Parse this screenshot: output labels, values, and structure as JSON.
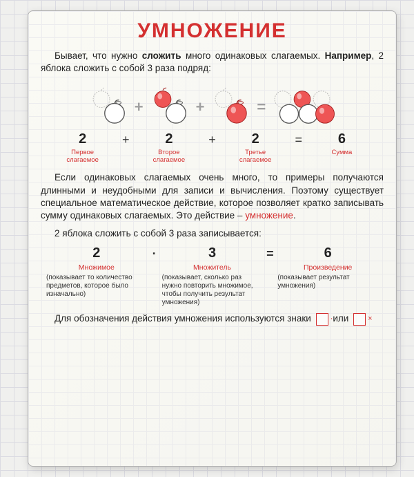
{
  "colors": {
    "accent": "#d43030",
    "text": "#222222",
    "faded": "#a0a0a0"
  },
  "title": "УМНОЖЕНИЕ",
  "intro_plain": "Бывает, что нужно сложить много одинаковых слагаемых. Например, 2 яблока сложить с собой 3 раза подряд:",
  "addition": {
    "terms": [
      {
        "value": "2",
        "label": "Первое\nслагаемое"
      },
      {
        "value": "2",
        "label": "Второе\nслагаемое"
      },
      {
        "value": "2",
        "label": "Третье\nслагаемое"
      }
    ],
    "op": "+",
    "eq": "=",
    "result": {
      "value": "6",
      "label": "Сумма"
    }
  },
  "para1_plain": "Если одинаковых слагаемых очень много, то примеры получаются длинными и неудобными для записи и вычисления. Поэтому существует специальное математическое действие, которое позволяет кратко записывать сумму одинаковых слагаемых. Это действие – умножение.",
  "para2": "2 яблока сложить с собой 3 раза записывается:",
  "mult": {
    "terms": [
      {
        "value": "2",
        "label": "Множимое",
        "desc": "(показывает то количество предметов, которое было изначально)"
      },
      {
        "value": "3",
        "label": "Множитель",
        "desc": "(показывает, сколько раз нужно повторить множимое, чтобы получить результат умножения)"
      },
      {
        "value": "6",
        "label": "Произведение",
        "desc": "(показывает результат умножения)"
      }
    ],
    "op": "·",
    "eq": "="
  },
  "footer_plain": "Для обозначения действия умножения используются знаки",
  "footer_or": "или",
  "sign_dot": "·",
  "sign_x": "×"
}
